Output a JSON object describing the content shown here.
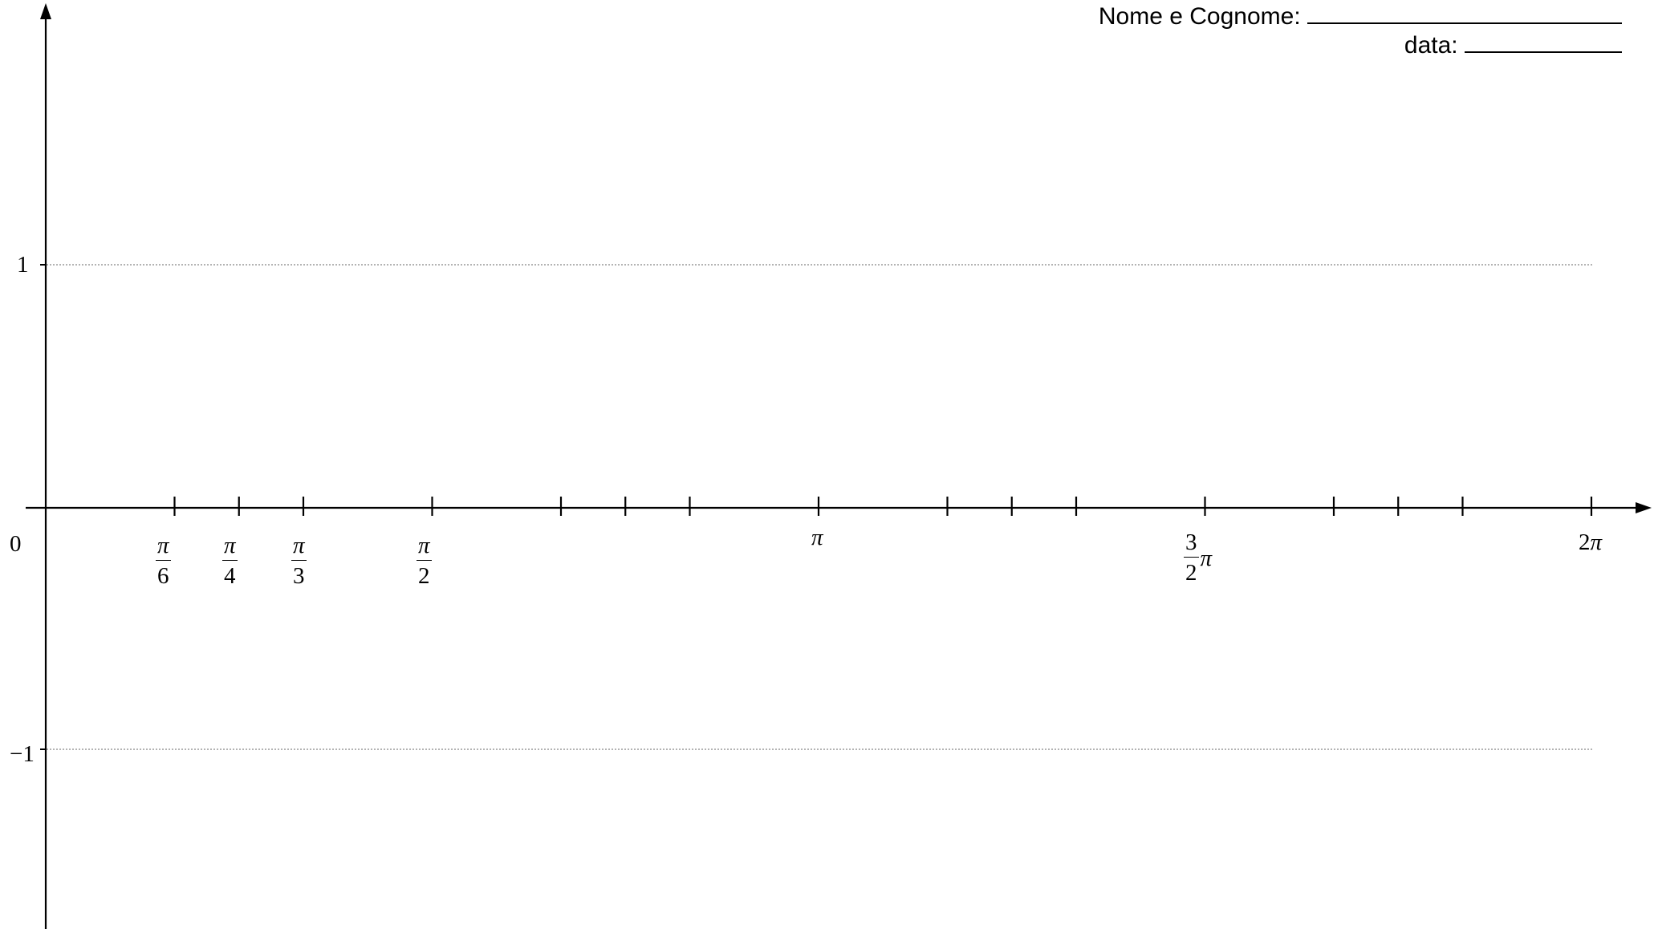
{
  "header": {
    "name_label": "Nome e Cognome:",
    "date_label": "data:"
  },
  "axes": {
    "origin_label": "0",
    "y_tick_top_label": "1",
    "y_tick_bottom_label": "−1"
  },
  "x_tick_labels": {
    "pi_over_6": {
      "num": "π",
      "den": "6"
    },
    "pi_over_4": {
      "num": "π",
      "den": "4"
    },
    "pi_over_3": {
      "num": "π",
      "den": "3"
    },
    "pi_over_2": {
      "num": "π",
      "den": "2"
    },
    "pi": "π",
    "three_halves_pi": {
      "num": "3",
      "den": "2",
      "tail": "π"
    },
    "two_pi": {
      "coef": "2",
      "sym": "π"
    }
  },
  "colors": {
    "ink": "#000000",
    "guide": "#9a9a9a"
  }
}
